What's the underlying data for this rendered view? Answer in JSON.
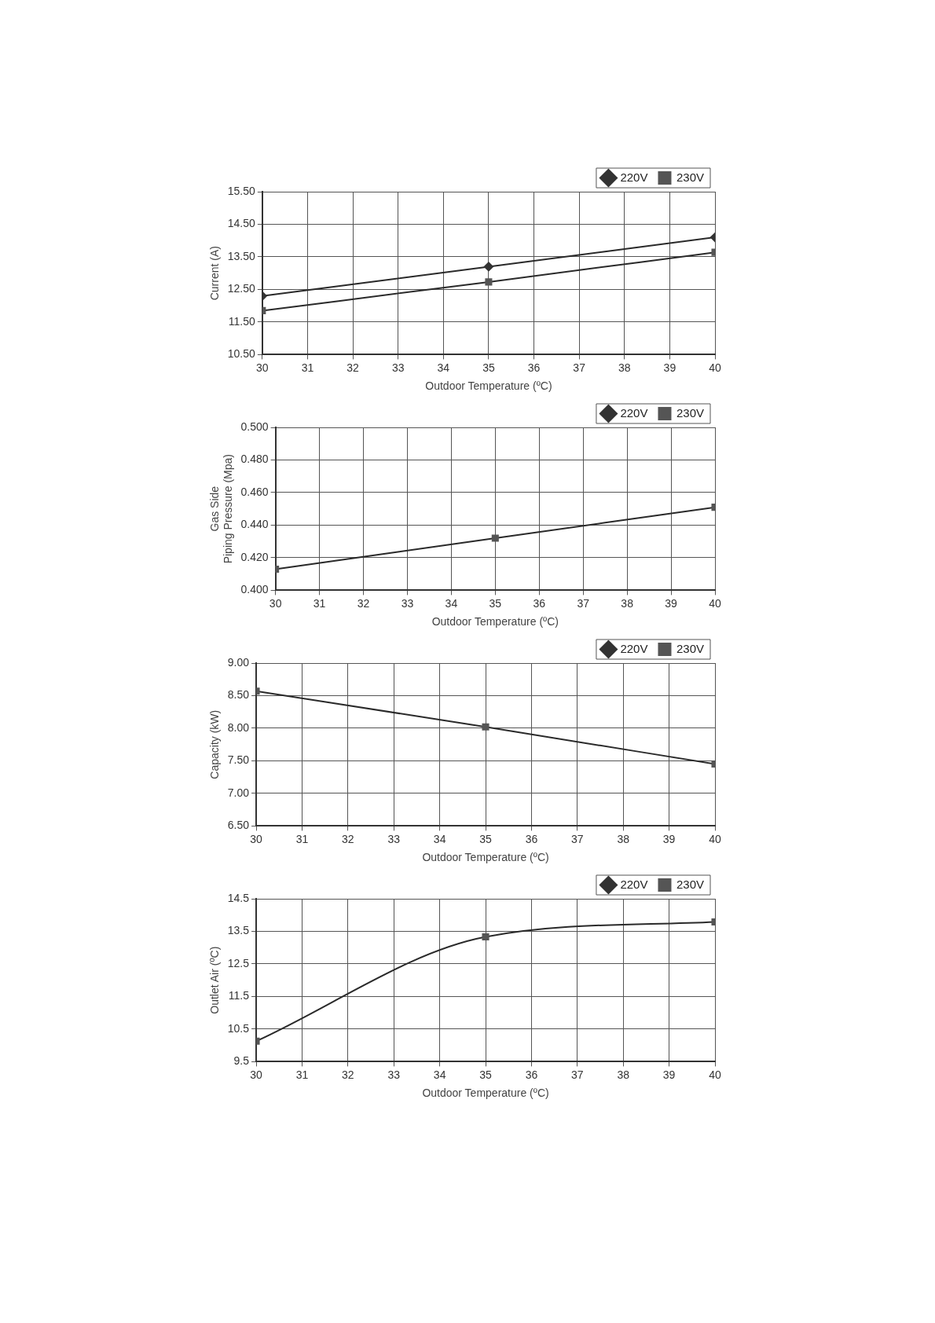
{
  "chart_data": [
    {
      "type": "line",
      "x": [
        30,
        35,
        40
      ],
      "xlabel": "Outdoor Temperature (ºC)",
      "ylabel": "Current (A)",
      "xlim": [
        30,
        40
      ],
      "xticks": [
        30,
        31,
        32,
        33,
        34,
        35,
        36,
        37,
        38,
        39,
        40
      ],
      "ylim": [
        10.5,
        15.5
      ],
      "yticks": [
        {
          "value": 10.5,
          "label": "10.50"
        },
        {
          "value": 11.5,
          "label": "11.50"
        },
        {
          "value": 12.5,
          "label": "12.50"
        },
        {
          "value": 13.5,
          "label": "13.50"
        },
        {
          "value": 14.5,
          "label": "14.50"
        },
        {
          "value": 15.5,
          "label": "15.50"
        }
      ],
      "grid": true,
      "legend": "top right",
      "line_style": "solid",
      "series": [
        {
          "name": "220V",
          "color": "#333333",
          "marker": "diamond",
          "values": [
            12.3,
            13.2,
            14.1
          ]
        },
        {
          "name": "230V",
          "color": "#555555",
          "marker": "square",
          "values": [
            11.85,
            12.73,
            13.64
          ]
        }
      ]
    },
    {
      "type": "line",
      "x": [
        30,
        35,
        40
      ],
      "xlabel": "Outdoor Temperature (ºC)",
      "ylabel": "Gas Side\nPiping Pressure (Mpa)",
      "xlim": [
        30,
        40
      ],
      "xticks": [
        30,
        31,
        32,
        33,
        34,
        35,
        36,
        37,
        38,
        39,
        40
      ],
      "ylim": [
        0.4,
        0.5
      ],
      "yticks": [
        {
          "value": 0.4,
          "label": "0.400"
        },
        {
          "value": 0.42,
          "label": "0.420"
        },
        {
          "value": 0.44,
          "label": "0.440"
        },
        {
          "value": 0.46,
          "label": "0.460"
        },
        {
          "value": 0.48,
          "label": "0.480"
        },
        {
          "value": 0.5,
          "label": "0.500"
        }
      ],
      "grid": true,
      "legend": "top right",
      "line_style": "solid",
      "series": [
        {
          "name": "220V",
          "color": "#333333",
          "marker": "diamond",
          "values": [
            null,
            null,
            null
          ]
        },
        {
          "name": "230V",
          "color": "#555555",
          "marker": "square",
          "values": [
            0.413,
            0.432,
            0.451
          ]
        }
      ]
    },
    {
      "type": "line",
      "x": [
        30,
        35,
        40
      ],
      "xlabel": "Outdoor Temperature (ºC)",
      "ylabel": "Capacity (kW)",
      "xlim": [
        30,
        40
      ],
      "xticks": [
        30,
        31,
        32,
        33,
        34,
        35,
        36,
        37,
        38,
        39,
        40
      ],
      "ylim": [
        6.5,
        9.0
      ],
      "yticks": [
        {
          "value": 6.5,
          "label": "6.50"
        },
        {
          "value": 7,
          "label": "7.00"
        },
        {
          "value": 7.5,
          "label": "7.50"
        },
        {
          "value": 8,
          "label": "8.00"
        },
        {
          "value": 8.5,
          "label": "8.50"
        },
        {
          "value": 9,
          "label": "9.00"
        }
      ],
      "grid": true,
      "legend": "top right",
      "line_style": "solid",
      "series": [
        {
          "name": "220V",
          "color": "#333333",
          "marker": "diamond",
          "values": [
            null,
            null,
            null
          ]
        },
        {
          "name": "230V",
          "color": "#555555",
          "marker": "square",
          "values": [
            8.57,
            8.02,
            7.45
          ]
        }
      ]
    },
    {
      "type": "line",
      "x": [
        30,
        35,
        40
      ],
      "xlabel": "Outdoor Temperature (ºC)",
      "ylabel": "Outlet Air (ºC)",
      "xlim": [
        30,
        40
      ],
      "xticks": [
        30,
        31,
        32,
        33,
        34,
        35,
        36,
        37,
        38,
        39,
        40
      ],
      "ylim": [
        9.5,
        14.5
      ],
      "yticks": [
        9.5,
        10.5,
        11.5,
        12.5,
        13.5,
        14.5
      ],
      "grid": true,
      "legend": "top right",
      "line_style": "solid",
      "series": [
        {
          "name": "220V",
          "color": "#333333",
          "marker": "diamond",
          "values": [
            null,
            null,
            null
          ]
        },
        {
          "name": "230V",
          "color": "#555555",
          "marker": "square",
          "values": [
            10.13,
            13.33,
            13.79
          ]
        }
      ]
    }
  ]
}
